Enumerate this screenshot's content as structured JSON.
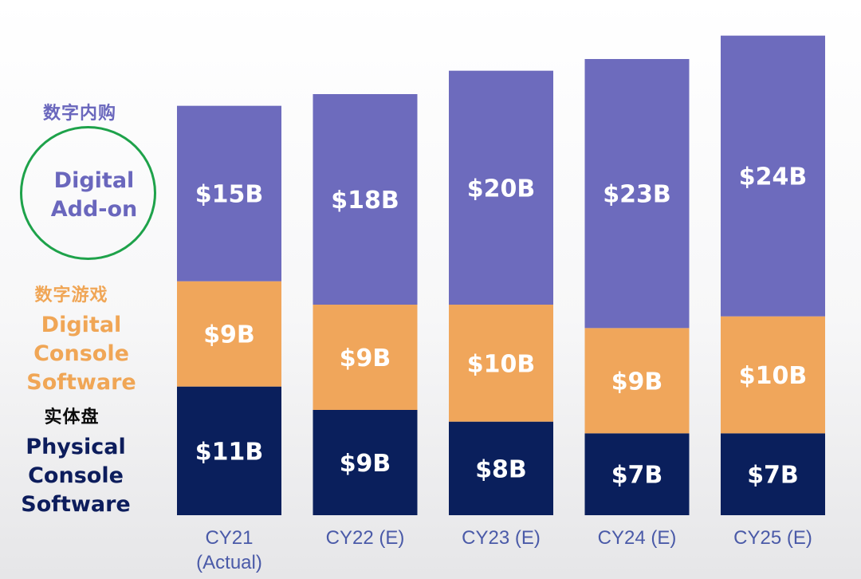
{
  "chart_data": {
    "type": "bar",
    "stacked": true,
    "categories": [
      "CY21\n(Actual)",
      "CY22 (E)",
      "CY23 (E)",
      "CY24 (E)",
      "CY25 (E)"
    ],
    "series": [
      {
        "name": "Physical Console Software",
        "name_cn": "实体盘",
        "color": "#0a1f5c",
        "values": [
          11,
          9,
          8,
          7,
          7
        ],
        "labels": [
          "$11B",
          "$9B",
          "$8B",
          "$7B",
          "$7B"
        ]
      },
      {
        "name": "Digital Console Software",
        "name_cn": "数字游戏",
        "color": "#f0a65b",
        "values": [
          9,
          9,
          10,
          9,
          10
        ],
        "labels": [
          "$9B",
          "$9B",
          "$10B",
          "$9B",
          "$10B"
        ]
      },
      {
        "name": "Digital Add-on",
        "name_cn": "数字内购",
        "color": "#6d6bbd",
        "values": [
          15,
          18,
          20,
          23,
          24
        ],
        "labels": [
          "$15B",
          "$18B",
          "$20B",
          "$23B",
          "$24B"
        ]
      }
    ],
    "ylim": [
      0,
      42
    ]
  },
  "legend": {
    "addon": {
      "cn": "数字内购",
      "en_line1": "Digital",
      "en_line2": "Add-on"
    },
    "software": {
      "cn": "数字游戏",
      "en_line1": "Digital",
      "en_line2": "Console",
      "en_line3": "Software"
    },
    "physical": {
      "cn": "实体盘",
      "en_line1": "Physical",
      "en_line2": "Console",
      "en_line3": "Software"
    }
  },
  "colors": {
    "addon_highlight": "#1ea24a",
    "axis_label": "#4a5aa8"
  }
}
